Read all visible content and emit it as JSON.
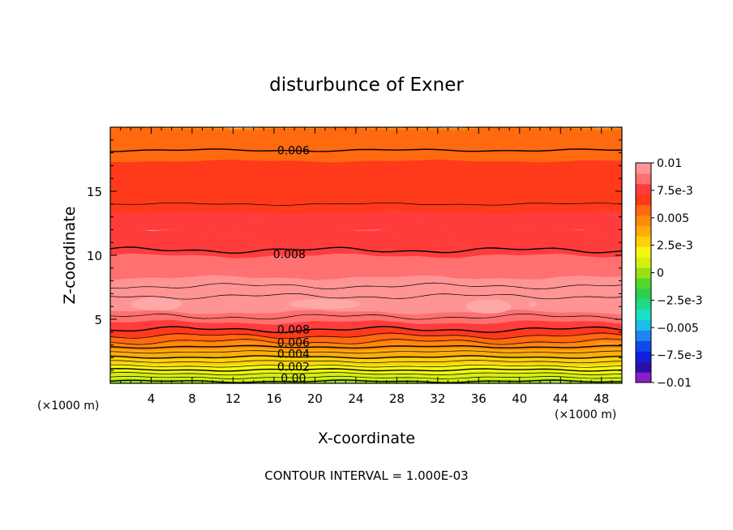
{
  "chart_data": {
    "type": "heatmap",
    "subtype": "filled-contour",
    "title": "disturbunce of Exner",
    "xlabel": "X-coordinate",
    "ylabel": "Z-coordinate",
    "x_unit_label": "(×1000 m)",
    "y_unit_label": "(×1000 m)",
    "xlim": [
      0,
      50
    ],
    "ylim": [
      0,
      20
    ],
    "x_ticks": [
      4,
      8,
      12,
      16,
      20,
      24,
      28,
      32,
      36,
      40,
      44,
      48
    ],
    "y_ticks": [
      5,
      10,
      15
    ],
    "footer": "CONTOUR INTERVAL = 1.000E-03",
    "colorbar": {
      "range": [
        -0.01,
        0.01
      ],
      "labels": [
        {
          "value": 0.01,
          "text": "0.01"
        },
        {
          "value": 0.0075,
          "text": "7.5e-3"
        },
        {
          "value": 0.005,
          "text": "0.005"
        },
        {
          "value": 0.0025,
          "text": "2.5e-3"
        },
        {
          "value": 0,
          "text": "0"
        },
        {
          "value": -0.0025,
          "text": "−2.5e-3"
        },
        {
          "value": -0.005,
          "text": "−0.005"
        },
        {
          "value": -0.0075,
          "text": "−7.5e-3"
        },
        {
          "value": -0.01,
          "text": "−0.01"
        }
      ],
      "colors": [
        "#8a1dc8",
        "#2a10a8",
        "#1020e0",
        "#0f4be8",
        "#1d84f0",
        "#1bbee8",
        "#1ae0c8",
        "#1fd88a",
        "#2ecf4f",
        "#52d82a",
        "#9be014",
        "#d8ee12",
        "#f6f70f",
        "#ffd10a",
        "#ffac0a",
        "#ff8a0a",
        "#ff6a10",
        "#ff3a1a",
        "#ff3d3d",
        "#ff7070",
        "#ff9494"
      ]
    },
    "vertical_profile": {
      "z": [
        0,
        0.5,
        1,
        1.5,
        2,
        2.5,
        3,
        3.5,
        4,
        4.5,
        5,
        6,
        7,
        8,
        9,
        10,
        11,
        12,
        14,
        16,
        18,
        19,
        20
      ],
      "value": [
        0.0,
        0.0008,
        0.0016,
        0.0024,
        0.0032,
        0.004,
        0.0049,
        0.0058,
        0.0067,
        0.0076,
        0.0085,
        0.0094,
        0.0096,
        0.0092,
        0.0087,
        0.0081,
        0.0078,
        0.0075,
        0.007,
        0.0066,
        0.006,
        0.0056,
        0.0052
      ]
    },
    "contour_lines": [
      {
        "z": 0.15,
        "bold": true
      },
      {
        "z": 0.45
      },
      {
        "z": 0.75
      },
      {
        "z": 1.05,
        "bold": true
      },
      {
        "z": 1.35
      },
      {
        "z": 1.7
      },
      {
        "z": 2.05,
        "bold": true
      },
      {
        "z": 2.45
      },
      {
        "z": 2.85,
        "bold": true
      },
      {
        "z": 3.25
      },
      {
        "z": 3.7
      },
      {
        "z": 4.2,
        "bold": true
      },
      {
        "z": 5.2
      },
      {
        "z": 6.8
      },
      {
        "z": 7.6
      },
      {
        "z": 10.4,
        "bold": true
      },
      {
        "z": 14.0
      },
      {
        "z": 18.2,
        "bold": true
      }
    ],
    "contour_labels": [
      {
        "x": 17.9,
        "z": 18.2,
        "text": "0.006"
      },
      {
        "x": 17.5,
        "z": 10.1,
        "text": "0.008"
      },
      {
        "x": 17.9,
        "z": 4.2,
        "text": "0.008"
      },
      {
        "x": 17.9,
        "z": 3.2,
        "text": "0.006"
      },
      {
        "x": 17.9,
        "z": 2.3,
        "text": "0.004"
      },
      {
        "x": 17.9,
        "z": 1.3,
        "text": "0.002"
      },
      {
        "x": 17.9,
        "z": 0.4,
        "text": "0.00"
      }
    ]
  }
}
